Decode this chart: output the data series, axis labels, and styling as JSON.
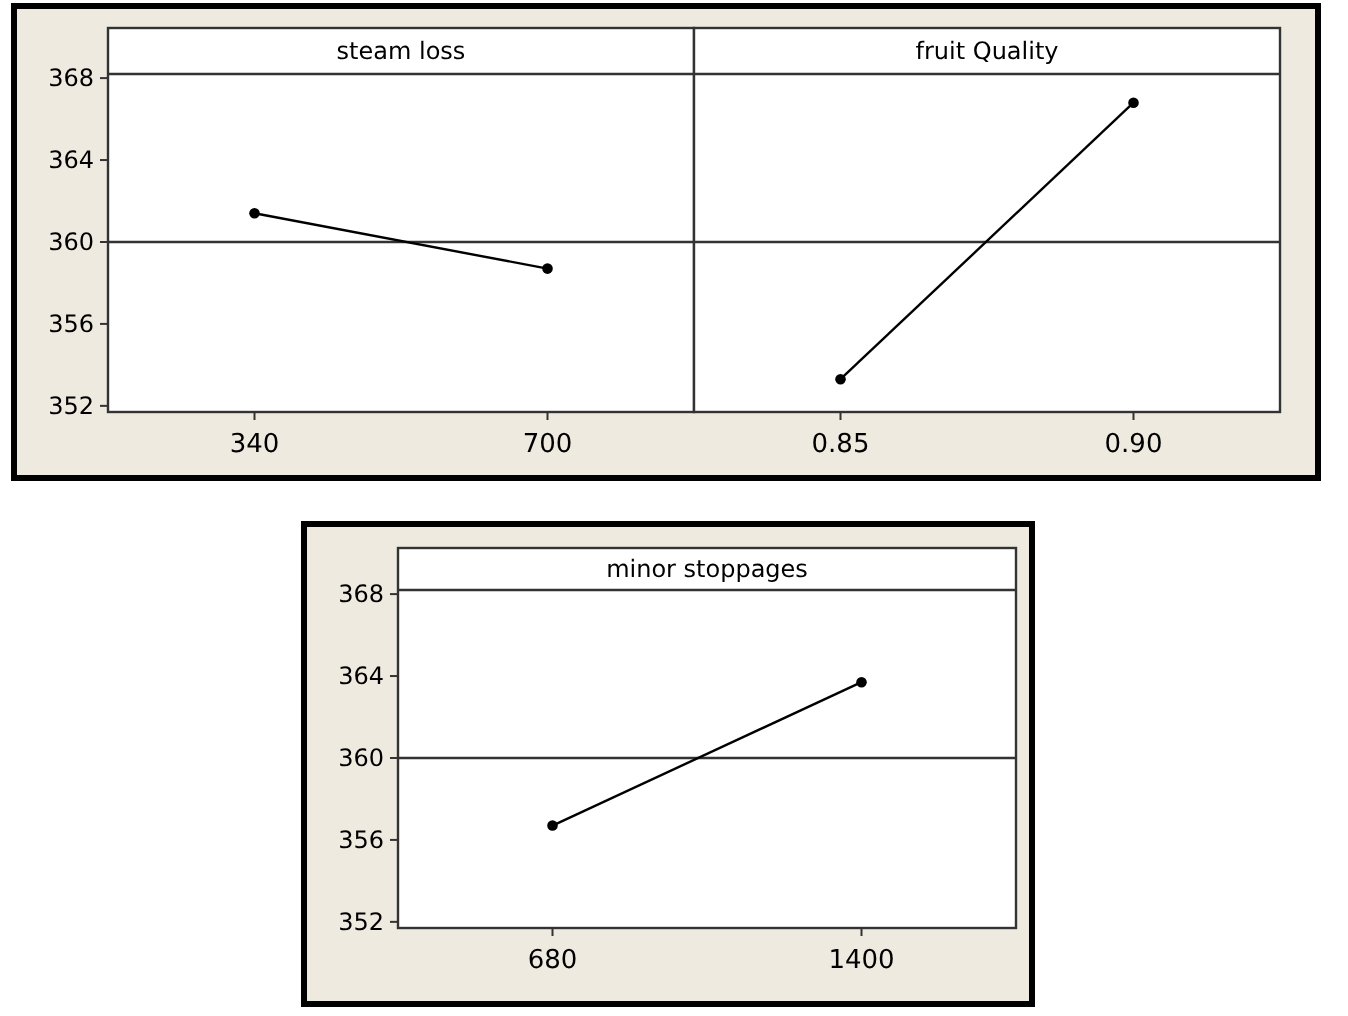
{
  "chart_data": [
    {
      "type": "line",
      "title": "steam loss",
      "categories": [
        "340",
        "700"
      ],
      "series": [
        {
          "color": "#000000",
          "values": [
            361.4,
            358.7
          ]
        }
      ],
      "ylim": [
        351.7,
        368.2
      ],
      "yticks": [
        352,
        356,
        360,
        364,
        368
      ],
      "ref_lines": [
        {
          "axis": "y",
          "value": 360
        }
      ],
      "marker": "circle"
    },
    {
      "type": "line",
      "title": "fruit Quality",
      "categories": [
        "0.85",
        "0.90"
      ],
      "series": [
        {
          "color": "#000000",
          "values": [
            353.3,
            366.8
          ]
        }
      ],
      "ylim": [
        351.7,
        368.2
      ],
      "ref_lines": [
        {
          "axis": "y",
          "value": 360
        }
      ],
      "marker": "circle",
      "tick_labels": "x"
    },
    {
      "type": "line",
      "title": "minor stoppages",
      "categories": [
        "680",
        "1400"
      ],
      "series": [
        {
          "color": "#000000",
          "values": [
            356.7,
            363.7
          ]
        }
      ],
      "ylim": [
        351.7,
        368.2
      ],
      "yticks": [
        352,
        356,
        360,
        364,
        368
      ],
      "ref_lines": [
        {
          "axis": "y",
          "value": 360
        }
      ],
      "marker": "circle"
    }
  ]
}
